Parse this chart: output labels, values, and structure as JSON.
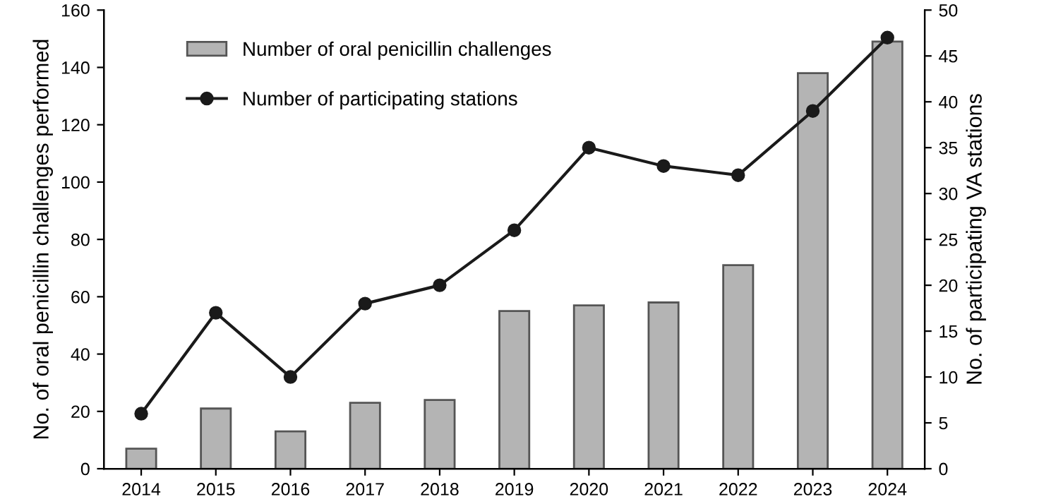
{
  "chart_data": {
    "type": "bar",
    "categories": [
      "2014",
      "2015",
      "2016",
      "2017",
      "2018",
      "2019",
      "2020",
      "2021",
      "2022",
      "2023",
      "2024"
    ],
    "ylabel": "No. of oral penicillin challenges performed",
    "y2label": "No. of participating VA stations",
    "ylim": [
      0,
      160
    ],
    "yticks": [
      0,
      20,
      40,
      60,
      80,
      100,
      120,
      140,
      160
    ],
    "y2lim": [
      0,
      50
    ],
    "y2ticks": [
      0,
      5,
      10,
      15,
      20,
      25,
      30,
      35,
      40,
      45,
      50
    ],
    "grid": false,
    "legend": "top left",
    "series": [
      {
        "name": "Number of oral penicillin challenges",
        "color": "#b4b4b4",
        "values": [
          7,
          21,
          13,
          23,
          24,
          55,
          57,
          58,
          71,
          138,
          149
        ]
      },
      {
        "name": "Number of participating stations",
        "type": "line",
        "axis": "y2",
        "color": "#1a1a1a",
        "marker": "circle",
        "line_style": "solid",
        "values": [
          6,
          17,
          10,
          18,
          20,
          26,
          35,
          33,
          32,
          39,
          47
        ]
      }
    ]
  }
}
